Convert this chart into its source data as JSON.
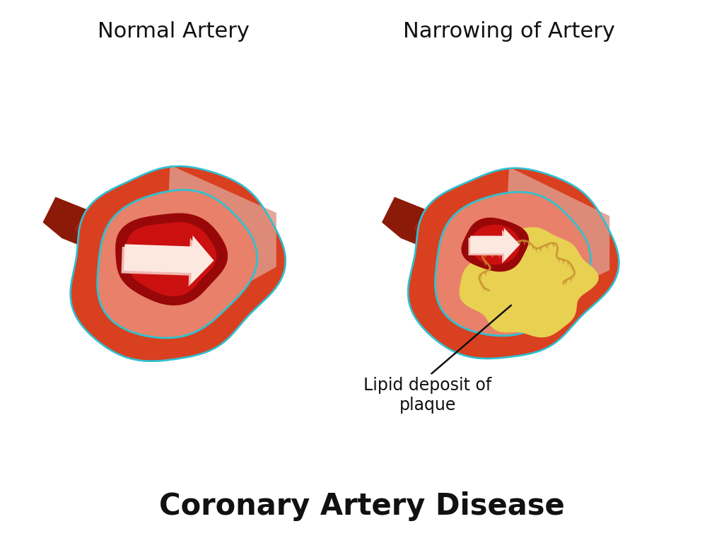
{
  "title": "Coronary Artery Disease",
  "left_label": "Normal Artery",
  "right_label": "Narrowing of Artery",
  "annotation_label": "Lipid deposit of\nplaque",
  "bg_color": "#ffffff",
  "title_fontsize": 30,
  "label_fontsize": 22,
  "annotation_fontsize": 17,
  "outer_wall_color": "#d94020",
  "outer_wall_dark": "#b83010",
  "outer_wall_medium": "#cc3a1a",
  "wall_texture_color": "#e05028",
  "wall_inner_pink": "#e87060",
  "inner_lining_light": "#f0a090",
  "inner_lining_salmon": "#e8806a",
  "cut_face_pink": "#e09888",
  "cut_face_light": "#f0b8a8",
  "lumen_red": "#cc1010",
  "lumen_dark": "#990808",
  "lumen_bright": "#ee2020",
  "arrow_pink": "#f0b8b0",
  "arrow_white": "#fde8e0",
  "plaque_yellow": "#e8d050",
  "plaque_gold": "#d4b828",
  "plaque_orange": "#c89030",
  "plaque_rough": "#c89830",
  "cyan_line": "#30c0d0",
  "yellow_line": "#e8e040",
  "tube_dark": "#8B1A08",
  "tube_mid": "#aa2010",
  "shadow_color": "#cc3018"
}
